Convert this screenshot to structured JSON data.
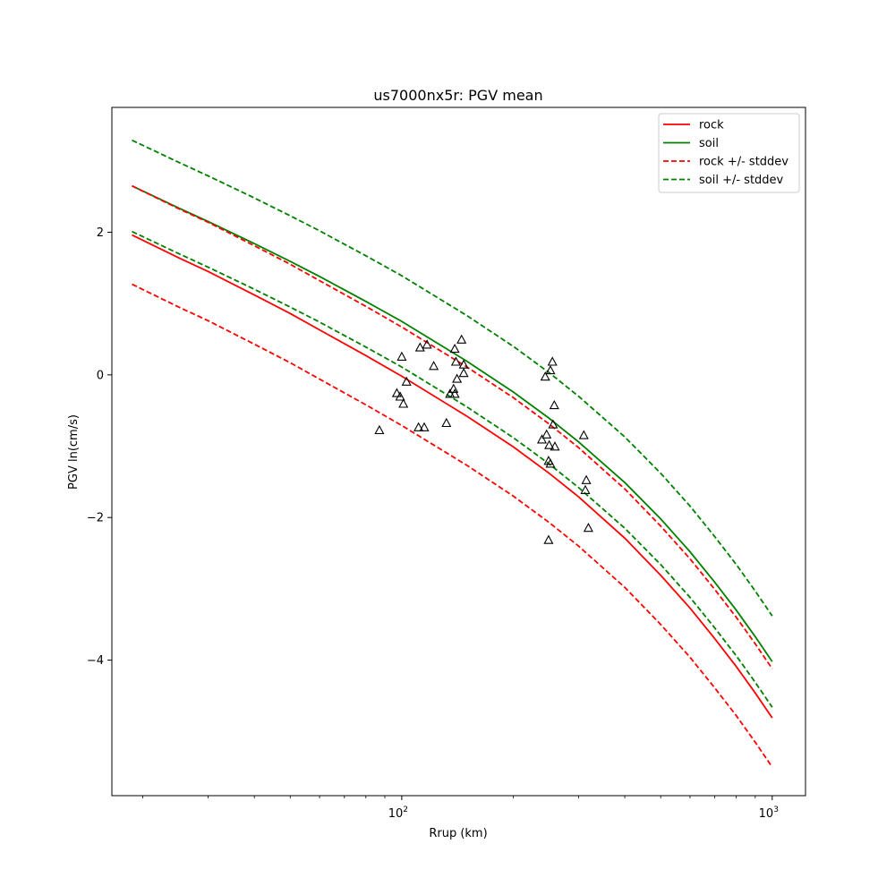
{
  "chart_data": {
    "type": "line",
    "title": "us7000nx5r: PGV mean",
    "xlabel": "Rrup (km)",
    "ylabel": "PGV ln(cm/s)",
    "xscale": "log",
    "xlim": [
      16.5,
      1230
    ],
    "ylim": [
      -5.9,
      3.75
    ],
    "grid": false,
    "legend_position": "upper-right",
    "x_major_ticks": [
      {
        "value": 100,
        "base": "10",
        "exp": "2"
      },
      {
        "value": 1000,
        "base": "10",
        "exp": "3"
      }
    ],
    "x_minor_ticks": [
      20,
      30,
      40,
      50,
      60,
      70,
      80,
      90,
      200,
      300,
      400,
      500,
      600,
      700,
      800,
      900
    ],
    "y_ticks": [
      {
        "value": 2,
        "label": "2"
      },
      {
        "value": 0,
        "label": "0"
      },
      {
        "value": -2,
        "label": "−2"
      },
      {
        "value": -4,
        "label": "−4"
      }
    ],
    "x": [
      18.7,
      25,
      30,
      40,
      50,
      60,
      80,
      100,
      150,
      200,
      250,
      300,
      400,
      500,
      600,
      700,
      800,
      900,
      1000
    ],
    "series": [
      {
        "name": "rock",
        "color": "#ff0000",
        "dash": "solid",
        "legend": true,
        "values": [
          1.96,
          1.64,
          1.45,
          1.12,
          0.86,
          0.63,
          0.27,
          -0.02,
          -0.58,
          -1.01,
          -1.38,
          -1.71,
          -2.29,
          -2.81,
          -3.27,
          -3.7,
          -4.09,
          -4.46,
          -4.81
        ]
      },
      {
        "name": "soil",
        "color": "#008000",
        "dash": "solid",
        "legend": true,
        "values": [
          2.65,
          2.34,
          2.15,
          1.84,
          1.59,
          1.38,
          1.03,
          0.75,
          0.19,
          -0.24,
          -0.61,
          -0.94,
          -1.51,
          -2.02,
          -2.48,
          -2.91,
          -3.3,
          -3.67,
          -4.02
        ]
      },
      {
        "name": "rock +/- stddev",
        "color": "#ff0000",
        "dash": "dashed",
        "legend": true,
        "values": [
          2.65,
          2.33,
          2.14,
          1.81,
          1.55,
          1.32,
          0.96,
          0.67,
          0.11,
          -0.32,
          -0.69,
          -1.02,
          -1.6,
          -2.12,
          -2.58,
          -3.01,
          -3.4,
          -3.77,
          -4.12
        ]
      },
      {
        "name": "",
        "color": "#ff0000",
        "dash": "dashed",
        "legend": false,
        "values": [
          1.27,
          0.95,
          0.76,
          0.43,
          0.17,
          -0.06,
          -0.42,
          -0.71,
          -1.27,
          -1.7,
          -2.07,
          -2.4,
          -2.98,
          -3.5,
          -3.96,
          -4.39,
          -4.78,
          -5.15,
          -5.5
        ]
      },
      {
        "name": "soil +/- stddev",
        "color": "#008000",
        "dash": "dashed",
        "legend": true,
        "values": [
          3.29,
          2.98,
          2.79,
          2.48,
          2.23,
          2.02,
          1.67,
          1.39,
          0.83,
          0.4,
          0.03,
          -0.3,
          -0.87,
          -1.38,
          -1.84,
          -2.27,
          -2.66,
          -3.03,
          -3.38
        ]
      },
      {
        "name": "",
        "color": "#008000",
        "dash": "dashed",
        "legend": false,
        "values": [
          2.01,
          1.7,
          1.51,
          1.2,
          0.95,
          0.74,
          0.39,
          0.11,
          -0.45,
          -0.88,
          -1.25,
          -1.58,
          -2.15,
          -2.66,
          -3.12,
          -3.55,
          -3.94,
          -4.31,
          -4.66
        ]
      }
    ],
    "observations": {
      "marker": "triangle",
      "points": [
        [
          87,
          -0.78
        ],
        [
          97,
          -0.26
        ],
        [
          99,
          -0.31
        ],
        [
          100,
          0.25
        ],
        [
          101,
          -0.41
        ],
        [
          103,
          -0.1
        ],
        [
          111,
          -0.74
        ],
        [
          112,
          0.38
        ],
        [
          115,
          -0.74
        ],
        [
          117,
          0.42
        ],
        [
          122,
          0.12
        ],
        [
          132,
          -0.68
        ],
        [
          135,
          -0.27
        ],
        [
          138,
          -0.2
        ],
        [
          139,
          -0.27
        ],
        [
          139,
          0.36
        ],
        [
          140,
          0.18
        ],
        [
          141,
          -0.06
        ],
        [
          145,
          0.49
        ],
        [
          147,
          0.14
        ],
        [
          147,
          0.02
        ],
        [
          239,
          -0.91
        ],
        [
          244,
          -0.03
        ],
        [
          246,
          -0.84
        ],
        [
          249,
          -1.21
        ],
        [
          250,
          -0.99
        ],
        [
          252,
          -1.25
        ],
        [
          252,
          0.06
        ],
        [
          255,
          0.18
        ],
        [
          256,
          -0.7
        ],
        [
          258,
          -0.43
        ],
        [
          259,
          -1.01
        ],
        [
          310,
          -0.85
        ],
        [
          313,
          -1.62
        ],
        [
          315,
          -1.48
        ],
        [
          319,
          -2.15
        ],
        [
          249,
          -2.32
        ]
      ]
    }
  }
}
